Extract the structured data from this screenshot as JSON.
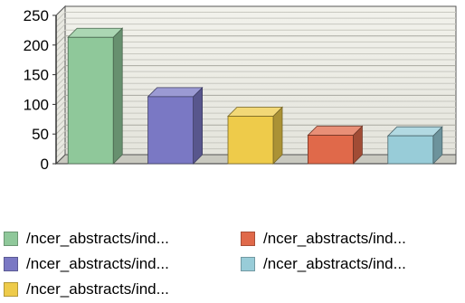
{
  "chart_data": {
    "type": "bar",
    "categories": [
      "/ncer_abstracts/ind...",
      "/ncer_abstracts/ind...",
      "/ncer_abstracts/ind...",
      "/ncer_abstracts/ind...",
      "/ncer_abstracts/ind..."
    ],
    "values": [
      213,
      113,
      80,
      48,
      47
    ],
    "colors": [
      "#8fc89a",
      "#7a78c4",
      "#eecb4a",
      "#e0694a",
      "#98ccd8"
    ],
    "title": "",
    "xlabel": "",
    "ylabel": "",
    "ylim": [
      0,
      250
    ],
    "yticks": [
      "0",
      "50",
      "100",
      "150",
      "200",
      "250"
    ],
    "grid": true,
    "style": "3d",
    "legend_position": "bottom"
  }
}
